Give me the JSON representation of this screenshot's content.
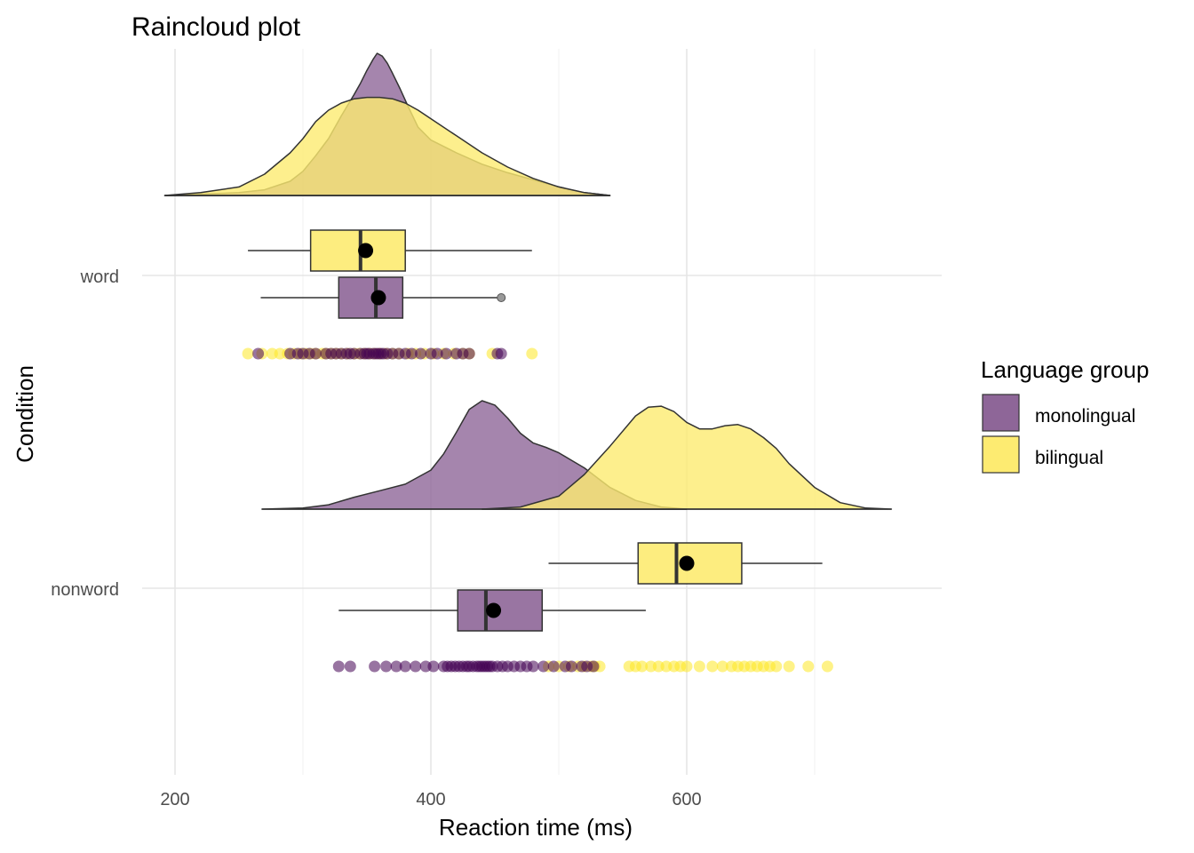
{
  "chart_data": {
    "type": "raincloud",
    "title": "Raincloud plot",
    "xlabel": "Reaction time (ms)",
    "ylabel": "Condition",
    "xlim": [
      160,
      760
    ],
    "x_ticks": [
      200,
      400,
      600
    ],
    "x_minor_ticks": [
      300,
      500,
      700
    ],
    "categories": [
      "word",
      "nonword"
    ],
    "grid": true,
    "legend": {
      "title": "Language group",
      "position": "right",
      "entries": [
        {
          "label": "monolingual",
          "color": "#8E6698"
        },
        {
          "label": "bilingual",
          "color": "#FDEB71"
        }
      ]
    },
    "groups": [
      {
        "condition": "word",
        "group": "monolingual",
        "color": "#8E6698",
        "point_color": "#440154",
        "density": {
          "x": [
            192,
            220,
            250,
            270,
            290,
            300,
            310,
            320,
            330,
            340,
            345,
            350,
            355,
            358,
            362,
            366,
            370,
            376,
            382,
            390,
            400,
            420,
            440,
            460,
            480,
            500,
            520,
            540
          ],
          "y": [
            0.0,
            0.01,
            0.02,
            0.04,
            0.1,
            0.17,
            0.28,
            0.4,
            0.56,
            0.71,
            0.79,
            0.88,
            0.96,
            1.0,
            0.98,
            0.93,
            0.86,
            0.75,
            0.63,
            0.48,
            0.39,
            0.3,
            0.22,
            0.16,
            0.11,
            0.06,
            0.02,
            0.0
          ]
        },
        "box": {
          "min": 267,
          "q1": 328,
          "median": 357,
          "q3": 378,
          "max": 452,
          "mean": 359,
          "outliers": [
            455
          ]
        },
        "points": [
          265,
          290,
          296,
          300,
          305,
          310,
          318,
          322,
          326,
          330,
          334,
          337,
          340,
          345,
          348,
          350,
          352,
          355,
          357,
          359,
          361,
          363,
          366,
          370,
          375,
          380,
          385,
          392,
          400,
          405,
          412,
          420,
          425,
          430,
          452,
          455
        ]
      },
      {
        "condition": "word",
        "group": "bilingual",
        "color": "#FDEB71",
        "point_color": "#FDE725",
        "density": {
          "x": [
            192,
            220,
            250,
            270,
            290,
            300,
            310,
            320,
            330,
            340,
            350,
            360,
            370,
            380,
            390,
            400,
            420,
            440,
            460,
            480,
            500,
            520,
            540
          ],
          "y": [
            0.0,
            0.02,
            0.06,
            0.15,
            0.3,
            0.4,
            0.52,
            0.6,
            0.65,
            0.68,
            0.69,
            0.69,
            0.68,
            0.65,
            0.6,
            0.54,
            0.42,
            0.3,
            0.2,
            0.12,
            0.06,
            0.02,
            0.0
          ]
        },
        "box": {
          "min": 257,
          "q1": 306,
          "median": 345,
          "q3": 380,
          "max": 479,
          "mean": 349,
          "outliers": []
        },
        "points": [
          257,
          268,
          276,
          282,
          288,
          293,
          298,
          302,
          306,
          310,
          315,
          318,
          322,
          326,
          330,
          335,
          340,
          344,
          348,
          352,
          356,
          360,
          365,
          370,
          375,
          382,
          388,
          395,
          402,
          410,
          418,
          425,
          430,
          448,
          479
        ]
      },
      {
        "condition": "nonword",
        "group": "monolingual",
        "color": "#8E6698",
        "point_color": "#440154",
        "density": {
          "x": [
            268,
            300,
            320,
            340,
            360,
            380,
            400,
            410,
            420,
            430,
            440,
            450,
            460,
            470,
            480,
            490,
            500,
            510,
            520,
            530,
            540,
            560,
            580,
            600
          ],
          "y": [
            0.0,
            0.01,
            0.04,
            0.11,
            0.17,
            0.23,
            0.36,
            0.51,
            0.71,
            0.92,
            1.0,
            0.96,
            0.84,
            0.7,
            0.61,
            0.57,
            0.52,
            0.45,
            0.38,
            0.29,
            0.2,
            0.08,
            0.02,
            0.0
          ]
        },
        "box": {
          "min": 328,
          "q1": 421,
          "median": 443,
          "q3": 487,
          "max": 568,
          "mean": 449,
          "outliers": []
        },
        "points": [
          328,
          337,
          356,
          365,
          373,
          380,
          388,
          396,
          402,
          410,
          413,
          416,
          419,
          422,
          425,
          428,
          430,
          433,
          436,
          438,
          440,
          442,
          444,
          446,
          448,
          452,
          456,
          460,
          465,
          470,
          475,
          480,
          488,
          496,
          505,
          510,
          518,
          522,
          527
        ]
      },
      {
        "condition": "nonword",
        "group": "bilingual",
        "color": "#FDEB71",
        "point_color": "#FDE725",
        "density": {
          "x": [
            440,
            470,
            500,
            520,
            540,
            560,
            570,
            580,
            590,
            600,
            610,
            620,
            630,
            640,
            650,
            660,
            670,
            680,
            700,
            720,
            740,
            760
          ],
          "y": [
            0.0,
            0.02,
            0.12,
            0.32,
            0.58,
            0.86,
            0.94,
            0.95,
            0.9,
            0.8,
            0.74,
            0.74,
            0.77,
            0.78,
            0.74,
            0.66,
            0.56,
            0.42,
            0.2,
            0.06,
            0.01,
            0.0
          ]
        },
        "box": {
          "min": 492,
          "q1": 562,
          "median": 592,
          "q3": 643,
          "max": 706,
          "mean": 600,
          "outliers": []
        },
        "points": [
          492,
          500,
          508,
          515,
          520,
          525,
          528,
          532,
          555,
          560,
          565,
          572,
          578,
          584,
          590,
          595,
          600,
          610,
          620,
          628,
          635,
          640,
          645,
          650,
          655,
          660,
          665,
          670,
          680,
          695,
          710
        ]
      }
    ]
  }
}
